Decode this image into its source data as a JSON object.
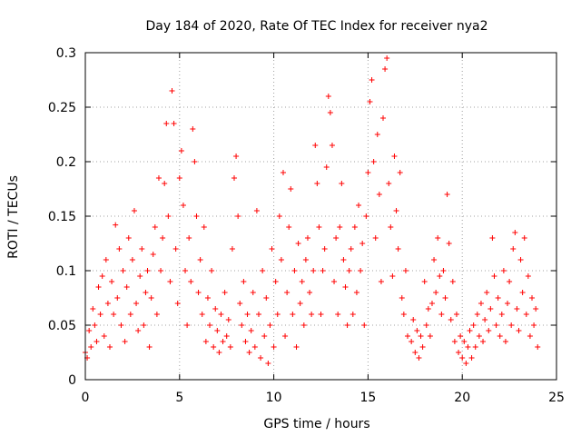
{
  "chart_data": {
    "type": "scatter",
    "title": "Day 184 of 2020, Rate Of TEC Index for receiver nya2",
    "xlabel": "GPS time / hours",
    "ylabel": "ROTI / TECUs",
    "xlim": [
      0,
      24
    ],
    "ylim": [
      0,
      0.3
    ],
    "xticks": [
      0,
      5,
      10,
      15,
      20,
      25
    ],
    "xtick_labels": [
      "0",
      "5",
      "10",
      "15",
      "20",
      "25"
    ],
    "yticks": [
      0,
      0.05,
      0.1,
      0.15,
      0.2,
      0.25,
      0.3
    ],
    "ytick_labels": [
      "0",
      "0.05",
      "0.1",
      "0.15",
      "0.2",
      "0.25",
      "0.3"
    ],
    "grid": true,
    "marker": "+",
    "color": "#ff0000",
    "series": [
      {
        "points": [
          [
            0.0,
            0.025
          ],
          [
            0.1,
            0.02
          ],
          [
            0.2,
            0.045
          ],
          [
            0.3,
            0.03
          ],
          [
            0.4,
            0.065
          ],
          [
            0.5,
            0.05
          ],
          [
            0.6,
            0.035
          ],
          [
            0.7,
            0.085
          ],
          [
            0.8,
            0.06
          ],
          [
            0.9,
            0.095
          ],
          [
            1.0,
            0.04
          ],
          [
            1.1,
            0.11
          ],
          [
            1.2,
            0.07
          ],
          [
            1.3,
            0.03
          ],
          [
            1.4,
            0.09
          ],
          [
            1.5,
            0.06
          ],
          [
            1.6,
            0.142
          ],
          [
            1.7,
            0.075
          ],
          [
            1.8,
            0.12
          ],
          [
            1.9,
            0.05
          ],
          [
            2.0,
            0.1
          ],
          [
            2.1,
            0.035
          ],
          [
            2.2,
            0.085
          ],
          [
            2.3,
            0.13
          ],
          [
            2.4,
            0.06
          ],
          [
            2.5,
            0.11
          ],
          [
            2.6,
            0.155
          ],
          [
            2.7,
            0.07
          ],
          [
            2.8,
            0.045
          ],
          [
            2.9,
            0.095
          ],
          [
            3.0,
            0.12
          ],
          [
            3.1,
            0.05
          ],
          [
            3.2,
            0.08
          ],
          [
            3.3,
            0.1
          ],
          [
            3.4,
            0.03
          ],
          [
            3.5,
            0.075
          ],
          [
            3.6,
            0.115
          ],
          [
            3.7,
            0.14
          ],
          [
            3.8,
            0.06
          ],
          [
            3.9,
            0.185
          ],
          [
            4.0,
            0.1
          ],
          [
            4.1,
            0.13
          ],
          [
            4.2,
            0.18
          ],
          [
            4.3,
            0.235
          ],
          [
            4.4,
            0.15
          ],
          [
            4.5,
            0.09
          ],
          [
            4.6,
            0.265
          ],
          [
            4.7,
            0.235
          ],
          [
            4.8,
            0.12
          ],
          [
            4.9,
            0.07
          ],
          [
            5.0,
            0.185
          ],
          [
            5.1,
            0.21
          ],
          [
            5.2,
            0.16
          ],
          [
            5.3,
            0.1
          ],
          [
            5.4,
            0.05
          ],
          [
            5.5,
            0.13
          ],
          [
            5.6,
            0.09
          ],
          [
            5.7,
            0.23
          ],
          [
            5.8,
            0.2
          ],
          [
            5.9,
            0.15
          ],
          [
            6.0,
            0.08
          ],
          [
            6.1,
            0.11
          ],
          [
            6.2,
            0.06
          ],
          [
            6.3,
            0.14
          ],
          [
            6.4,
            0.035
          ],
          [
            6.5,
            0.075
          ],
          [
            6.6,
            0.05
          ],
          [
            6.7,
            0.1
          ],
          [
            6.8,
            0.03
          ],
          [
            6.9,
            0.065
          ],
          [
            7.0,
            0.045
          ],
          [
            7.1,
            0.025
          ],
          [
            7.2,
            0.06
          ],
          [
            7.3,
            0.035
          ],
          [
            7.4,
            0.08
          ],
          [
            7.5,
            0.04
          ],
          [
            7.6,
            0.055
          ],
          [
            7.7,
            0.03
          ],
          [
            7.8,
            0.12
          ],
          [
            7.9,
            0.185
          ],
          [
            8.0,
            0.205
          ],
          [
            8.1,
            0.15
          ],
          [
            8.2,
            0.07
          ],
          [
            8.3,
            0.05
          ],
          [
            8.4,
            0.09
          ],
          [
            8.5,
            0.035
          ],
          [
            8.6,
            0.06
          ],
          [
            8.7,
            0.025
          ],
          [
            8.8,
            0.045
          ],
          [
            8.9,
            0.08
          ],
          [
            9.0,
            0.03
          ],
          [
            9.1,
            0.155
          ],
          [
            9.2,
            0.06
          ],
          [
            9.3,
            0.02
          ],
          [
            9.4,
            0.1
          ],
          [
            9.5,
            0.04
          ],
          [
            9.6,
            0.075
          ],
          [
            9.7,
            0.015
          ],
          [
            9.8,
            0.05
          ],
          [
            9.9,
            0.12
          ],
          [
            10.0,
            0.03
          ],
          [
            10.1,
            0.09
          ],
          [
            10.2,
            0.06
          ],
          [
            10.3,
            0.15
          ],
          [
            10.4,
            0.11
          ],
          [
            10.5,
            0.19
          ],
          [
            10.6,
            0.04
          ],
          [
            10.7,
            0.08
          ],
          [
            10.8,
            0.14
          ],
          [
            10.9,
            0.175
          ],
          [
            11.0,
            0.06
          ],
          [
            11.1,
            0.1
          ],
          [
            11.2,
            0.03
          ],
          [
            11.3,
            0.125
          ],
          [
            11.4,
            0.07
          ],
          [
            11.5,
            0.09
          ],
          [
            11.6,
            0.05
          ],
          [
            11.7,
            0.11
          ],
          [
            11.8,
            0.13
          ],
          [
            11.9,
            0.08
          ],
          [
            12.0,
            0.06
          ],
          [
            12.1,
            0.1
          ],
          [
            12.2,
            0.215
          ],
          [
            12.3,
            0.18
          ],
          [
            12.4,
            0.14
          ],
          [
            12.5,
            0.06
          ],
          [
            12.6,
            0.1
          ],
          [
            12.7,
            0.12
          ],
          [
            12.8,
            0.195
          ],
          [
            12.9,
            0.26
          ],
          [
            13.0,
            0.245
          ],
          [
            13.1,
            0.215
          ],
          [
            13.2,
            0.09
          ],
          [
            13.3,
            0.13
          ],
          [
            13.4,
            0.06
          ],
          [
            13.5,
            0.14
          ],
          [
            13.6,
            0.18
          ],
          [
            13.7,
            0.11
          ],
          [
            13.8,
            0.085
          ],
          [
            13.9,
            0.05
          ],
          [
            14.0,
            0.1
          ],
          [
            14.1,
            0.12
          ],
          [
            14.2,
            0.06
          ],
          [
            14.3,
            0.14
          ],
          [
            14.4,
            0.08
          ],
          [
            14.5,
            0.16
          ],
          [
            14.6,
            0.1
          ],
          [
            14.7,
            0.125
          ],
          [
            14.8,
            0.05
          ],
          [
            14.9,
            0.15
          ],
          [
            15.0,
            0.19
          ],
          [
            15.1,
            0.255
          ],
          [
            15.2,
            0.275
          ],
          [
            15.3,
            0.2
          ],
          [
            15.4,
            0.13
          ],
          [
            15.5,
            0.225
          ],
          [
            15.6,
            0.17
          ],
          [
            15.7,
            0.09
          ],
          [
            15.8,
            0.24
          ],
          [
            15.9,
            0.285
          ],
          [
            16.0,
            0.295
          ],
          [
            16.1,
            0.18
          ],
          [
            16.2,
            0.14
          ],
          [
            16.3,
            0.095
          ],
          [
            16.4,
            0.205
          ],
          [
            16.5,
            0.155
          ],
          [
            16.6,
            0.12
          ],
          [
            16.7,
            0.19
          ],
          [
            16.8,
            0.075
          ],
          [
            16.9,
            0.06
          ],
          [
            17.0,
            0.1
          ],
          [
            17.1,
            0.04
          ],
          [
            17.3,
            0.035
          ],
          [
            17.4,
            0.055
          ],
          [
            17.5,
            0.025
          ],
          [
            17.6,
            0.045
          ],
          [
            17.7,
            0.02
          ],
          [
            17.8,
            0.04
          ],
          [
            17.9,
            0.03
          ],
          [
            18.0,
            0.09
          ],
          [
            18.1,
            0.05
          ],
          [
            18.2,
            0.065
          ],
          [
            18.3,
            0.04
          ],
          [
            18.4,
            0.07
          ],
          [
            18.5,
            0.11
          ],
          [
            18.6,
            0.08
          ],
          [
            18.7,
            0.13
          ],
          [
            18.8,
            0.095
          ],
          [
            18.9,
            0.06
          ],
          [
            19.0,
            0.1
          ],
          [
            19.1,
            0.075
          ],
          [
            19.2,
            0.17
          ],
          [
            19.3,
            0.125
          ],
          [
            19.4,
            0.055
          ],
          [
            19.5,
            0.09
          ],
          [
            19.6,
            0.035
          ],
          [
            19.7,
            0.06
          ],
          [
            19.8,
            0.025
          ],
          [
            19.9,
            0.04
          ],
          [
            20.0,
            0.02
          ],
          [
            20.1,
            0.035
          ],
          [
            20.2,
            0.015
          ],
          [
            20.3,
            0.03
          ],
          [
            20.4,
            0.045
          ],
          [
            20.5,
            0.02
          ],
          [
            20.6,
            0.05
          ],
          [
            20.7,
            0.03
          ],
          [
            20.8,
            0.06
          ],
          [
            20.9,
            0.04
          ],
          [
            21.0,
            0.07
          ],
          [
            21.1,
            0.035
          ],
          [
            21.2,
            0.055
          ],
          [
            21.3,
            0.08
          ],
          [
            21.4,
            0.045
          ],
          [
            21.5,
            0.065
          ],
          [
            21.6,
            0.13
          ],
          [
            21.7,
            0.095
          ],
          [
            21.8,
            0.05
          ],
          [
            21.9,
            0.075
          ],
          [
            22.0,
            0.04
          ],
          [
            22.1,
            0.06
          ],
          [
            22.2,
            0.1
          ],
          [
            22.3,
            0.035
          ],
          [
            22.4,
            0.07
          ],
          [
            22.5,
            0.09
          ],
          [
            22.6,
            0.05
          ],
          [
            22.7,
            0.12
          ],
          [
            22.8,
            0.135
          ],
          [
            22.9,
            0.065
          ],
          [
            23.0,
            0.045
          ],
          [
            23.1,
            0.11
          ],
          [
            23.2,
            0.08
          ],
          [
            23.3,
            0.13
          ],
          [
            23.4,
            0.06
          ],
          [
            23.5,
            0.095
          ],
          [
            23.6,
            0.04
          ],
          [
            23.7,
            0.075
          ],
          [
            23.8,
            0.05
          ],
          [
            23.9,
            0.065
          ],
          [
            24.0,
            0.03
          ]
        ]
      }
    ]
  }
}
